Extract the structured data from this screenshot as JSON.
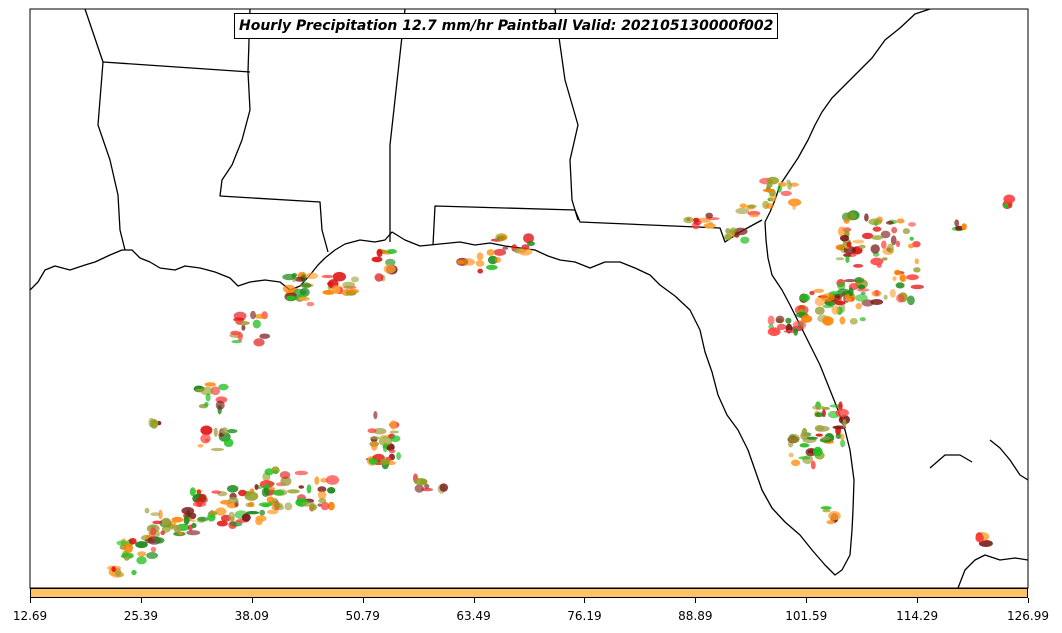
{
  "title": "Hourly Precipitation 12.7 mm/hr Paintball Valid: 202105130000f002",
  "colorbar": {
    "color": "#ffc266",
    "ticks": [
      "12.69",
      "25.39",
      "38.09",
      "50.79",
      "63.49",
      "76.19",
      "88.89",
      "101.59",
      "114.29",
      "126.99"
    ]
  },
  "paintball_colors": [
    "#ff8000",
    "#ffa030",
    "#e01010",
    "#ff4040",
    "#7a1a1a",
    "#90a020",
    "#20c020",
    "#1a8a1a",
    "#a0a040"
  ]
}
